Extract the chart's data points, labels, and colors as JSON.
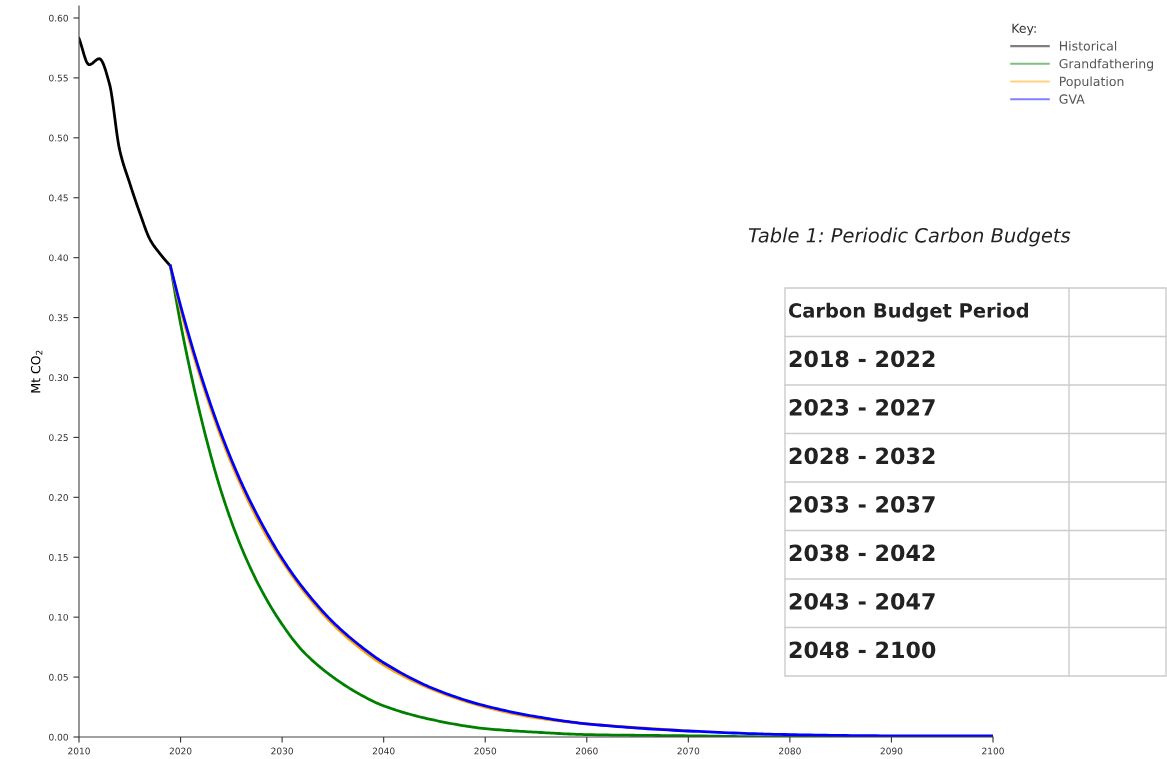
{
  "chart_data": {
    "type": "line",
    "ylabel": "Mt CO$_{2}$",
    "legend_title": "Key:",
    "legend": "top right",
    "grid": false,
    "marker": "none",
    "line_style": "solid",
    "xlim": [
      2010,
      2100
    ],
    "xticks": [
      2010,
      2020,
      2030,
      2040,
      2050,
      2060,
      2070,
      2080,
      2090,
      2100
    ],
    "ylim": [
      0,
      0.61
    ],
    "yticks": [
      {
        "value": 0,
        "label": "0.00"
      },
      {
        "value": 0.05,
        "label": "0.05"
      },
      {
        "value": 0.1,
        "label": "0.10"
      },
      {
        "value": 0.15,
        "label": "0.15"
      },
      {
        "value": 0.2,
        "label": "0.20"
      },
      {
        "value": 0.25,
        "label": "0.25"
      },
      {
        "value": 0.3,
        "label": "0.30"
      },
      {
        "value": 0.35,
        "label": "0.35"
      },
      {
        "value": 0.4,
        "label": "0.40"
      },
      {
        "value": 0.45,
        "label": "0.45"
      },
      {
        "value": 0.5,
        "label": "0.50"
      },
      {
        "value": 0.55,
        "label": "0.55"
      },
      {
        "value": 0.6,
        "label": "0.60"
      }
    ],
    "series": [
      {
        "name": "Historical",
        "color": "#000000",
        "x": [
          2010,
          2011,
          2012,
          2013,
          2014,
          2015,
          2016,
          2017,
          2018,
          2019
        ],
        "values": [
          0.583,
          0.561,
          0.566,
          0.545,
          0.49,
          0.462,
          0.437,
          0.415,
          0.403,
          0.393
        ]
      },
      {
        "name": "Grandfathering",
        "color": "#008000",
        "x": [
          2019,
          2020,
          2022,
          2024,
          2026,
          2028,
          2030,
          2032,
          2035,
          2038,
          2040,
          2045,
          2050,
          2055,
          2060,
          2070,
          2080,
          2090,
          2100
        ],
        "values": [
          0.393,
          0.345,
          0.267,
          0.205,
          0.158,
          0.122,
          0.094,
          0.072,
          0.05,
          0.034,
          0.026,
          0.014,
          0.007,
          0.004,
          0.002,
          0.001,
          0,
          0,
          0
        ]
      },
      {
        "name": "Population",
        "color": "#ffa500",
        "x": [
          2019,
          2020,
          2022,
          2024,
          2026,
          2028,
          2030,
          2032,
          2035,
          2038,
          2040,
          2045,
          2050,
          2055,
          2060,
          2070
        ],
        "values": [
          0.393,
          0.357,
          0.299,
          0.25,
          0.209,
          0.175,
          0.147,
          0.123,
          0.094,
          0.072,
          0.06,
          0.039,
          0.025,
          0.016,
          0.011,
          0.005
        ]
      },
      {
        "name": "GVA",
        "color": "#0000ff",
        "x": [
          2019,
          2020,
          2022,
          2024,
          2026,
          2028,
          2030,
          2032,
          2035,
          2038,
          2040,
          2045,
          2050,
          2055,
          2060,
          2070,
          2080,
          2090,
          2100
        ],
        "values": [
          0.393,
          0.36,
          0.302,
          0.253,
          0.212,
          0.178,
          0.149,
          0.125,
          0.096,
          0.074,
          0.062,
          0.04,
          0.026,
          0.017,
          0.011,
          0.005,
          0.002,
          0.001,
          0.001
        ]
      }
    ],
    "annotations": [
      "Table 1: Periodic Carbon Budgets",
      "Carbon Budget Period",
      "2018 - 2022",
      "2023 - 2027",
      "2028 - 2032",
      "2033 - 2037",
      "2038 - 2042",
      "2043 - 2047",
      "2048 - 2100"
    ]
  }
}
